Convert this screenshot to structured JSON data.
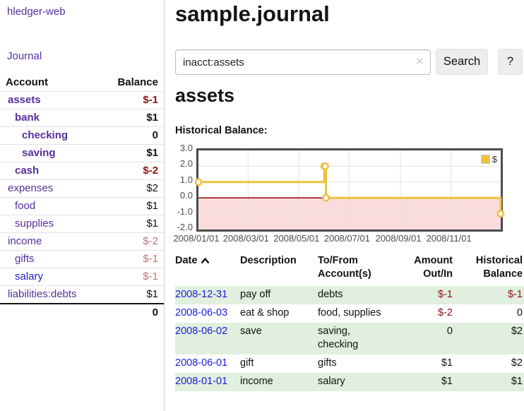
{
  "colors": {
    "link_purple": "#56309b",
    "link_blue": "#1b1bd6",
    "negative": "#8f1414",
    "negative_muted": "#c17272",
    "row_highlight": "#e1efdf"
  },
  "sidebar": {
    "brand": "hledger-web",
    "journal_label": "Journal",
    "accounts_table": {
      "account_header": "Account",
      "balance_header": "Balance",
      "rows": [
        {
          "name": "assets",
          "balance": "$-1",
          "indent": 1,
          "bold": true,
          "tone": "neg"
        },
        {
          "name": "bank",
          "balance": "$1",
          "indent": 2,
          "bold": true,
          "tone": ""
        },
        {
          "name": "checking",
          "balance": "0",
          "indent": 3,
          "bold": true,
          "tone": ""
        },
        {
          "name": "saving",
          "balance": "$1",
          "indent": 3,
          "bold": true,
          "tone": ""
        },
        {
          "name": "cash",
          "balance": "$-2",
          "indent": 2,
          "bold": true,
          "tone": "neg"
        },
        {
          "name": "expenses",
          "balance": "$2",
          "indent": 1,
          "bold": false,
          "tone": ""
        },
        {
          "name": "food",
          "balance": "$1",
          "indent": 2,
          "bold": false,
          "tone": ""
        },
        {
          "name": "supplies",
          "balance": "$1",
          "indent": 2,
          "bold": false,
          "tone": ""
        },
        {
          "name": "income",
          "balance": "$-2",
          "indent": 1,
          "bold": false,
          "tone": "neg-muted"
        },
        {
          "name": "gifts",
          "balance": "$-1",
          "indent": 2,
          "bold": false,
          "tone": "neg-muted"
        },
        {
          "name": "salary",
          "balance": "$-1",
          "indent": 2,
          "bold": false,
          "tone": "neg-muted",
          "link_variant": "blue"
        },
        {
          "name": "liabilities:debts",
          "balance": "$1",
          "indent": 1,
          "bold": false,
          "tone": ""
        }
      ],
      "total": "0"
    }
  },
  "main": {
    "title": "sample.journal",
    "search": {
      "value": "inacct:assets",
      "clear_icon": "✕",
      "button_label": "Search",
      "help_label": "?"
    },
    "account_heading": "assets",
    "section_label": "Historical Balance:"
  },
  "chart_data": {
    "type": "line",
    "style": "step-after",
    "title": "Historical Balance:",
    "series": [
      {
        "name": "$",
        "color": "#edc240",
        "points": [
          [
            "2008-01-01",
            1
          ],
          [
            "2008-06-01",
            2
          ],
          [
            "2008-06-02",
            2
          ],
          [
            "2008-06-03",
            0
          ],
          [
            "2008-12-31",
            -1
          ]
        ]
      }
    ],
    "x_ticks": [
      "2008/01/01",
      "2008/03/01",
      "2008/05/01",
      "2008/07/01",
      "2008/09/01",
      "2008/11/01"
    ],
    "y_ticks": [
      "3.0",
      "2.0",
      "1.0",
      "0.0",
      "-1.0",
      "-2.0"
    ],
    "ylim": [
      -2,
      3
    ],
    "grid": true,
    "grid_color": "#e3e3e3",
    "negative_region_color": "#fbdcdc",
    "zero_line_color": "#8b0000",
    "legend": {
      "label": "$",
      "position": "top-right"
    }
  },
  "register_table": {
    "headers": {
      "date": "Date",
      "description": "Description",
      "accounts": "To/From\nAccount(s)",
      "amount": "Amount\nOut/In",
      "balance": "Historical\nBalance"
    },
    "rows": [
      {
        "date": "2008-12-31",
        "description": "pay off",
        "accounts": "debts",
        "amount": "$-1",
        "amount_tone": "neg",
        "balance": "$-1",
        "balance_tone": "neg",
        "shaded": true
      },
      {
        "date": "2008-06-03",
        "description": "eat & shop",
        "accounts": "food, supplies",
        "amount": "$-2",
        "amount_tone": "neg",
        "balance": "0",
        "balance_tone": "",
        "shaded": false
      },
      {
        "date": "2008-06-02",
        "description": "save",
        "accounts": "saving,\nchecking",
        "amount": "0",
        "amount_tone": "",
        "balance": "$2",
        "balance_tone": "",
        "shaded": true
      },
      {
        "date": "2008-06-01",
        "description": "gift",
        "accounts": "gifts",
        "amount": "$1",
        "amount_tone": "",
        "balance": "$2",
        "balance_tone": "",
        "shaded": false
      },
      {
        "date": "2008-01-01",
        "description": "income",
        "accounts": "salary",
        "amount": "$1",
        "amount_tone": "",
        "balance": "$1",
        "balance_tone": "",
        "shaded": true
      }
    ]
  }
}
